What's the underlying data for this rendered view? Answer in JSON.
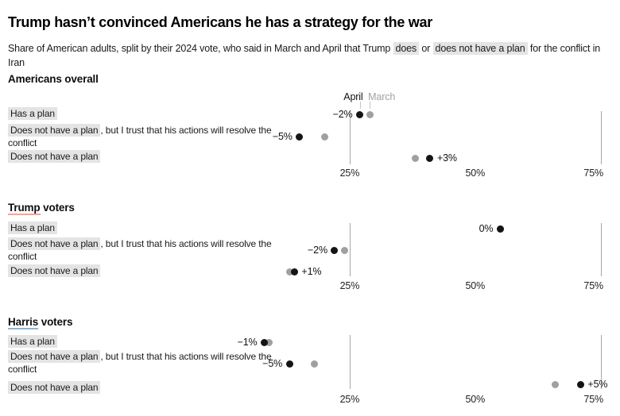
{
  "title": "Trump hasn’t convinced Americans he has a strategy for the war",
  "subtitle": {
    "parts": [
      {
        "text": "Share of American adults, split by their 2024 vote, who said in March and April that Trump ",
        "highlight": false
      },
      {
        "text": "does",
        "highlight": true
      },
      {
        "text": " or ",
        "highlight": false
      },
      {
        "text": "does not have a plan",
        "highlight": true
      },
      {
        "text": " for the conflict in Iran",
        "highlight": false
      }
    ]
  },
  "colors": {
    "april_dot": "#141414",
    "march_dot": "#a0a0a0",
    "label_bg": "#e4e4e4",
    "gridline": "#a8a8a8",
    "trump_underline": "#f9a395",
    "harris_underline": "#8db6d6"
  },
  "chart_data": {
    "type": "scatter",
    "subtype": "dumbbell-dot-plot",
    "unit": "% of group",
    "legend": {
      "april": "April",
      "march": "March",
      "legend_position": "top of first section, pointing at first-row dots"
    },
    "axis": {
      "ticks": [
        {
          "label": "25%",
          "value": 25
        },
        {
          "label": "50%",
          "value": 50
        },
        {
          "label": "75%",
          "value": 75
        }
      ],
      "gridline_values": [
        25,
        75
      ],
      "range": [
        0,
        78
      ],
      "grid": "vertical lines at 25% and 75% only, repeated per section"
    },
    "series": [
      "April",
      "March"
    ],
    "sections": [
      {
        "group": "Americans overall",
        "group_parts": [
          {
            "text": "Americans overall"
          }
        ],
        "rows": [
          {
            "label_chip": "Has a plan",
            "label_rest": "",
            "april": 27,
            "march": 29,
            "diff": "−2%"
          },
          {
            "label_chip": "Does not have a plan",
            "label_rest": ", but I trust that his actions will resolve the conflict",
            "april": 15,
            "march": 20,
            "diff": "−5%"
          },
          {
            "label_chip": "Does not have a plan",
            "label_rest": "",
            "april": 41,
            "march": 38,
            "diff": "+3%"
          }
        ]
      },
      {
        "group": "Trump voters",
        "group_parts": [
          {
            "text": "Trump",
            "underline": "trump_underline"
          },
          {
            "text": " voters"
          }
        ],
        "rows": [
          {
            "label_chip": "Has a plan",
            "label_rest": "",
            "april": 55,
            "march": 55,
            "diff": "0%"
          },
          {
            "label_chip": "Does not have a plan",
            "label_rest": ", but I trust that his actions will resolve the conflict",
            "april": 22,
            "march": 24,
            "diff": "−2%"
          },
          {
            "label_chip": "Does not have a plan",
            "label_rest": "",
            "april": 14,
            "march": 13,
            "diff": "+1%"
          }
        ]
      },
      {
        "group": "Harris voters",
        "group_parts": [
          {
            "text": "Harris",
            "underline": "harris_underline"
          },
          {
            "text": " voters"
          }
        ],
        "rows": [
          {
            "label_chip": "Has a plan",
            "label_rest": "",
            "april": 8,
            "march": 9,
            "diff": "−1%"
          },
          {
            "label_chip": "Does not have a plan",
            "label_rest": ", but I trust that his actions will resolve the conflict",
            "april": 13,
            "march": 18,
            "diff": "−5%"
          },
          {
            "label_chip": "Does not have a plan",
            "label_rest": "",
            "april": 71,
            "march": 66,
            "diff": "+5%"
          }
        ]
      }
    ]
  }
}
